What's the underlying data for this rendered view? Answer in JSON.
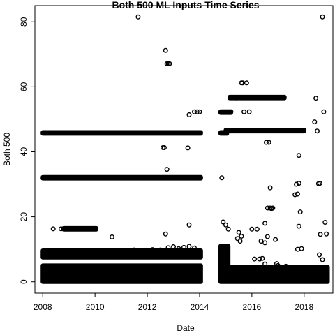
{
  "chart_data": {
    "type": "scatter",
    "title": "Both 500 ML Inputs Time Series",
    "xlabel": "Date",
    "ylabel": "Both 500",
    "xlim": [
      2007.7,
      2019.1
    ],
    "ylim": [
      -3.5,
      85.0
    ],
    "x_ticks": [
      {
        "value": 2008,
        "label": "2008"
      },
      {
        "value": 2010,
        "label": "2010"
      },
      {
        "value": 2012,
        "label": "2012"
      },
      {
        "value": 2014,
        "label": "2014"
      },
      {
        "value": 2016,
        "label": "2016"
      },
      {
        "value": 2018,
        "label": "2018"
      }
    ],
    "y_ticks": [
      {
        "value": 0,
        "label": "0"
      },
      {
        "value": 20,
        "label": "20"
      },
      {
        "value": 40,
        "label": "40"
      },
      {
        "value": 60,
        "label": "60"
      },
      {
        "value": 80,
        "label": "80"
      }
    ],
    "grid": false,
    "legend": "none",
    "dense_bands": [
      {
        "x_start": 2008.0,
        "x_end": 2014.05,
        "y_min": 0.0,
        "y_max": 5.0
      },
      {
        "x_start": 2008.0,
        "x_end": 2014.05,
        "y_min": 7.5,
        "y_max": 9.6
      },
      {
        "x_start": 2014.8,
        "x_end": 2018.9,
        "y_min": 0.0,
        "y_max": 4.6
      },
      {
        "x_start": 2008.0,
        "x_end": 2014.05,
        "y_min": 45.6,
        "y_max": 46.0
      },
      {
        "x_start": 2008.0,
        "x_end": 2014.05,
        "y_min": 31.8,
        "y_max": 32.2
      },
      {
        "x_start": 2008.8,
        "x_end": 2010.05,
        "y_min": 16.1,
        "y_max": 16.5
      },
      {
        "x_start": 2015.15,
        "x_end": 2017.25,
        "y_min": 56.5,
        "y_max": 56.9
      },
      {
        "x_start": 2015.0,
        "x_end": 2018.0,
        "y_min": 46.3,
        "y_max": 46.7
      },
      {
        "x_start": 2014.8,
        "x_end": 2015.2,
        "y_min": 52.0,
        "y_max": 52.4
      },
      {
        "x_start": 2014.8,
        "x_end": 2015.05,
        "y_min": 45.6,
        "y_max": 46.0
      },
      {
        "x_start": 2014.8,
        "x_end": 2015.1,
        "y_min": 5.0,
        "y_max": 11.0
      }
    ],
    "series": [
      {
        "x": [
          2011.65,
          2012.7,
          2012.75,
          2012.8,
          2012.85,
          2013.6,
          2013.8,
          2013.9,
          2014.0,
          2012.6,
          2012.65,
          2013.55,
          2012.75,
          2012.7,
          2013.6,
          2008.4,
          2008.7,
          2008.8,
          2010.65,
          2012.5,
          2012.8,
          2013.0,
          2013.2,
          2013.4,
          2013.6,
          2013.8,
          2011.5,
          2012.2,
          2014.9,
          2015.0,
          2015.1,
          2014.85,
          2015.2,
          2015.4,
          2015.6,
          2015.65,
          2015.8,
          2015.9,
          2015.7,
          2015.85,
          2015.5,
          2015.6,
          2016.1,
          2016.3,
          2016.5,
          2016.6,
          2016.7,
          2016.8,
          2016.55,
          2016.65,
          2016.7,
          2016.4,
          2016.5,
          2016.6,
          2016.9,
          2016.0,
          2016.2,
          2016.35,
          2016.5,
          2016.75,
          2017.0,
          2017.3,
          2017.6,
          2017.8,
          2017.5,
          2017.65,
          2017.75,
          2017.8,
          2017.85,
          2017.7,
          2017.8,
          2017.75,
          2017.9,
          2018.05,
          2018.2,
          2018.4,
          2018.45,
          2018.5,
          2018.55,
          2018.6,
          2018.7,
          2018.75,
          2018.8,
          2018.85,
          2018.62,
          2018.58,
          2018.7,
          2018.5,
          2018.6,
          2018.75,
          2018.8,
          2018.65,
          2018.4,
          2018.3,
          2018.5,
          2016.95,
          2015.55,
          2015.45
        ],
        "y": [
          81.5,
          71.2,
          67.1,
          67.1,
          67.1,
          51.4,
          52.3,
          52.3,
          52.3,
          41.3,
          41.3,
          41.2,
          34.6,
          14.7,
          17.5,
          16.3,
          16.3,
          16.3,
          13.8,
          9.8,
          10.5,
          10.8,
          10.2,
          10.6,
          10.9,
          10.4,
          9.8,
          9.9,
          18.4,
          17.5,
          16.2,
          32.0,
          52.3,
          56.6,
          61.2,
          61.2,
          61.2,
          52.3,
          52.3,
          46.5,
          15.2,
          14.0,
          7.0,
          7.0,
          18.0,
          22.7,
          22.7,
          22.7,
          42.9,
          42.9,
          28.9,
          7.2,
          5.5,
          13.9,
          13.0,
          16.2,
          16.2,
          12.5,
          12.0,
          22.5,
          5.0,
          4.8,
          4.5,
          38.9,
          46.5,
          26.8,
          27.0,
          17.1,
          21.5,
          30.0,
          30.3,
          10.0,
          10.2,
          4.3,
          3.9,
          49.2,
          56.5,
          46.4,
          30.2,
          30.3,
          81.5,
          52.3,
          18.3,
          14.7,
          14.6,
          8.3,
          6.8,
          3.5,
          3.2,
          1.5,
          1.0,
          4.1,
          2.3,
          3.6,
          0.9,
          5.6,
          12.5,
          13.3
        ]
      }
    ]
  }
}
